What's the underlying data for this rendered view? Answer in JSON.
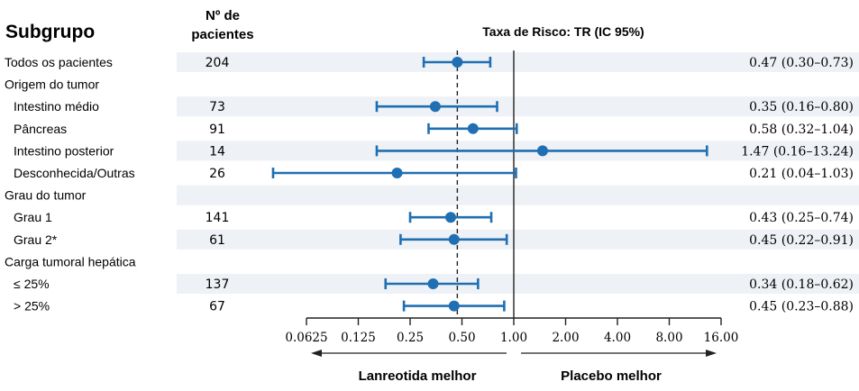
{
  "chart_data": {
    "type": "forest",
    "headers": {
      "subgroup": "Subgrupo",
      "n_line1": "Nº de",
      "n_line2": "pacientes",
      "effect": "Taxa de Risco: TR (IC 95%)"
    },
    "x_scale": "log2",
    "xlim": [
      0.0625,
      16
    ],
    "x_ticks": [
      0.0625,
      0.125,
      0.25,
      0.5,
      1,
      2,
      4,
      8,
      16
    ],
    "x_tick_labels": [
      "0.0625",
      "0.125",
      "0.25",
      "0.50",
      "1.00",
      "2.00",
      "4.00",
      "8.00",
      "16.00"
    ],
    "reference_line": 1.0,
    "overall_line": 0.47,
    "direction_left": "Lanreotida melhor",
    "direction_right": "Placebo melhor",
    "rows": [
      {
        "label": "Todos os pacientes",
        "indent": 0,
        "shaded": true,
        "n": "204",
        "hr": 0.47,
        "lo": 0.3,
        "hi": 0.73,
        "ci_text": "0.47 (0.30–0.73)"
      },
      {
        "label": "Origem do tumor",
        "indent": 0,
        "shaded": false
      },
      {
        "label": "Intestino médio",
        "indent": 1,
        "shaded": true,
        "n": "73",
        "hr": 0.35,
        "lo": 0.16,
        "hi": 0.8,
        "ci_text": "0.35 (0.16–0.80)"
      },
      {
        "label": "Pâncreas",
        "indent": 1,
        "shaded": false,
        "n": "91",
        "hr": 0.58,
        "lo": 0.32,
        "hi": 1.04,
        "ci_text": "0.58 (0.32–1.04)"
      },
      {
        "label": "Intestino posterior",
        "indent": 1,
        "shaded": true,
        "n": "14",
        "hr": 1.47,
        "lo": 0.16,
        "hi": 13.24,
        "ci_text": "1.47 (0.16–13.24)"
      },
      {
        "label": "Desconhecida/Outras",
        "indent": 1,
        "shaded": false,
        "n": "26",
        "hr": 0.21,
        "lo": 0.04,
        "hi": 1.03,
        "ci_text": "0.21 (0.04–1.03)"
      },
      {
        "label": "Grau do tumor",
        "indent": 0,
        "shaded": true
      },
      {
        "label": "Grau 1",
        "indent": 1,
        "shaded": false,
        "n": "141",
        "hr": 0.43,
        "lo": 0.25,
        "hi": 0.74,
        "ci_text": "0.43 (0.25–0.74)"
      },
      {
        "label": "Grau 2*",
        "indent": 1,
        "shaded": true,
        "n": "61",
        "hr": 0.45,
        "lo": 0.22,
        "hi": 0.91,
        "ci_text": "0.45 (0.22–0.91)"
      },
      {
        "label": "Carga tumoral hepática",
        "indent": 0,
        "shaded": false
      },
      {
        "label": "≤ 25%",
        "indent": 1,
        "shaded": true,
        "n": "137",
        "hr": 0.34,
        "lo": 0.18,
        "hi": 0.62,
        "ci_text": "0.34 (0.18–0.62)"
      },
      {
        "label": "> 25%",
        "indent": 1,
        "shaded": false,
        "n": "67",
        "hr": 0.45,
        "lo": 0.23,
        "hi": 0.88,
        "ci_text": "0.45 (0.23–0.88)"
      }
    ],
    "colors": {
      "marker": "#1f6fb2",
      "row_shade": "#eef1f5",
      "axis": "#222222"
    }
  }
}
